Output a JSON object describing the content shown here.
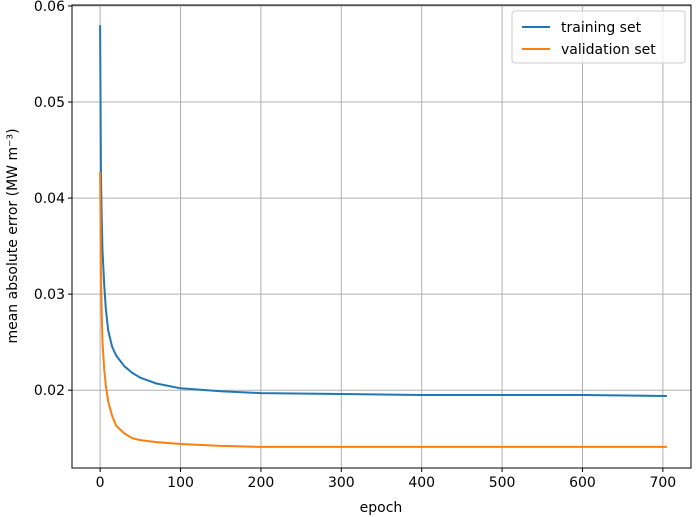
{
  "chart_data": {
    "type": "line",
    "title": "",
    "xlabel": "epoch",
    "ylabel": "mean absolute error (MW m⁻³)",
    "xlim": [
      -35,
      735
    ],
    "ylim": [
      0.0119,
      0.0601
    ],
    "xticks": [
      0,
      100,
      200,
      300,
      400,
      500,
      600,
      700
    ],
    "xtick_labels": [
      "0",
      "100",
      "200",
      "300",
      "400",
      "500",
      "600",
      "700"
    ],
    "yticks": [
      0.02,
      0.03,
      0.04,
      0.05,
      0.06
    ],
    "ytick_labels": [
      "0.02",
      "0.03",
      "0.04",
      "0.05",
      "0.06"
    ],
    "grid": true,
    "legend_position": "top-right",
    "series": [
      {
        "name": "training set",
        "color": "#1f77b4",
        "x": [
          0,
          1,
          2,
          3,
          5,
          7,
          10,
          15,
          20,
          30,
          40,
          50,
          70,
          100,
          150,
          200,
          300,
          400,
          500,
          600,
          705
        ],
        "y": [
          0.058,
          0.043,
          0.038,
          0.0345,
          0.031,
          0.0285,
          0.0262,
          0.0245,
          0.0236,
          0.0225,
          0.0218,
          0.0213,
          0.0207,
          0.0202,
          0.0199,
          0.0197,
          0.0196,
          0.0195,
          0.0195,
          0.0195,
          0.0194
        ]
      },
      {
        "name": "validation set",
        "color": "#ff7f0e",
        "x": [
          0,
          1,
          2,
          3,
          5,
          7,
          10,
          15,
          20,
          30,
          40,
          50,
          70,
          100,
          150,
          200,
          300,
          400,
          500,
          600,
          705
        ],
        "y": [
          0.0427,
          0.033,
          0.028,
          0.025,
          0.0222,
          0.0205,
          0.0188,
          0.0173,
          0.0163,
          0.0155,
          0.015,
          0.0148,
          0.0146,
          0.0144,
          0.0142,
          0.0141,
          0.0141,
          0.0141,
          0.0141,
          0.0141,
          0.0141
        ]
      }
    ]
  }
}
